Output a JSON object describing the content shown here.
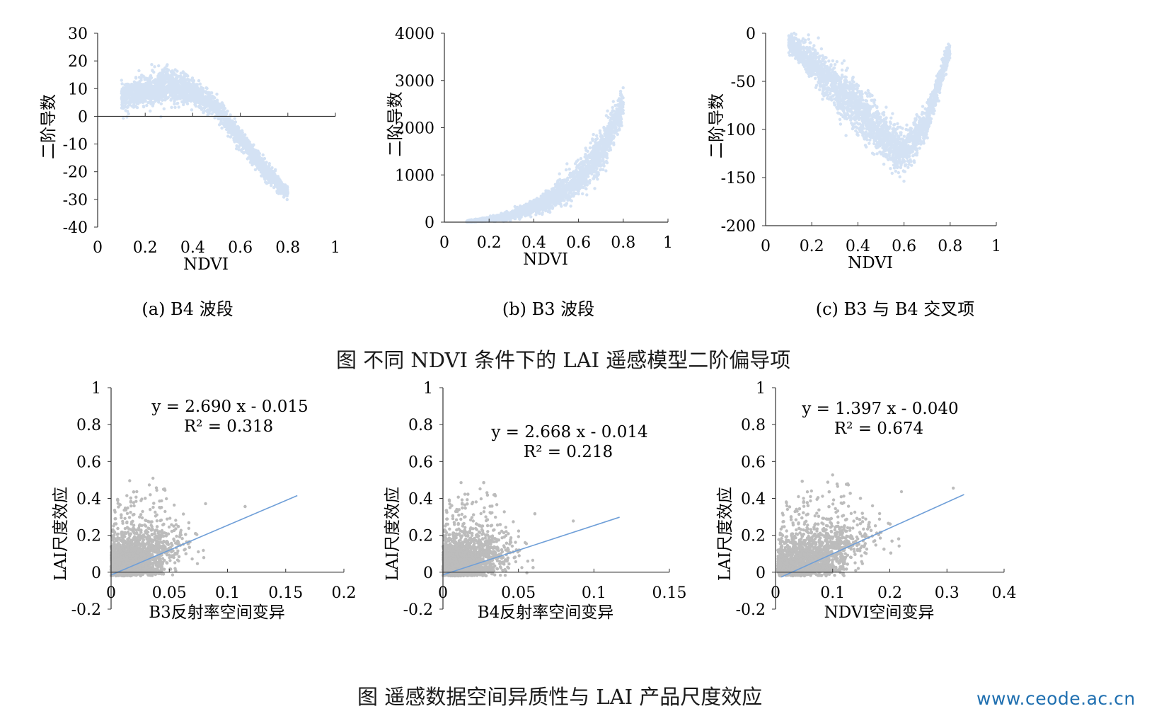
{
  "figure_top": {
    "caption": "图    不同 NDVI 条件下的 LAI 遥感模型二阶偏导项"
  },
  "figure_bottom": {
    "caption": "图    遥感数据空间异质性与 LAI 产品尺度效应"
  },
  "watermark": "www.ceode.ac.cn",
  "colors": {
    "blue_points": "#7fa9de",
    "black_points": "#111111",
    "fit_line": "#6f9fd8",
    "axis": "#333333"
  },
  "chart_data": [
    {
      "id": "a",
      "type": "scatter",
      "panel_label": "(a) B4 波段",
      "xlabel": "NDVI",
      "ylabel": "二阶导数",
      "xlim": [
        0,
        1
      ],
      "ylim": [
        -40,
        30
      ],
      "xticks": [
        0,
        0.2,
        0.4,
        0.6,
        0.8,
        1
      ],
      "xtick_labels": [
        "0",
        "0.2",
        "0.4",
        "0.6",
        "0.8",
        "1"
      ],
      "yticks": [
        30,
        20,
        10,
        0,
        -10,
        -20,
        -30,
        -40
      ],
      "ytick_labels": [
        "30",
        "20",
        "10",
        "0",
        "-10",
        "-20",
        "-30",
        "-40"
      ],
      "point_color": "#7fa9de",
      "trend": {
        "x": [
          0.1,
          0.2,
          0.3,
          0.4,
          0.5,
          0.6,
          0.7,
          0.8
        ],
        "y_center": [
          7,
          9,
          11,
          9,
          3,
          -8,
          -19,
          -28
        ],
        "y_spread": [
          4,
          5,
          6,
          4,
          3,
          3,
          3,
          2
        ]
      }
    },
    {
      "id": "b",
      "type": "scatter",
      "panel_label": "(b) B3 波段",
      "xlabel": "NDVI",
      "ylabel": "二阶导数",
      "xlim": [
        0,
        1
      ],
      "ylim": [
        0,
        4000
      ],
      "xticks": [
        0,
        0.2,
        0.4,
        0.6,
        0.8,
        1
      ],
      "xtick_labels": [
        "0",
        "0.2",
        "0.4",
        "0.6",
        "0.8",
        "1"
      ],
      "yticks": [
        4000,
        3000,
        2000,
        1000,
        0
      ],
      "ytick_labels": [
        "4000",
        "3000",
        "2000",
        "1000",
        "0"
      ],
      "point_color": "#7fa9de",
      "trend": {
        "x": [
          0.1,
          0.2,
          0.3,
          0.4,
          0.5,
          0.6,
          0.7,
          0.8
        ],
        "y_center": [
          10,
          60,
          150,
          300,
          550,
          900,
          1500,
          2500
        ],
        "y_spread": [
          20,
          40,
          80,
          120,
          200,
          300,
          400,
          300
        ]
      }
    },
    {
      "id": "c",
      "type": "scatter",
      "panel_label": "(c) B3 与 B4 交叉项",
      "xlabel": "NDVI",
      "ylabel": "二阶导数",
      "xlim": [
        0,
        1
      ],
      "ylim": [
        -200,
        0
      ],
      "xticks": [
        0,
        0.2,
        0.4,
        0.6,
        0.8,
        1
      ],
      "xtick_labels": [
        "0",
        "0.2",
        "0.4",
        "0.6",
        "0.8",
        "1"
      ],
      "yticks": [
        0,
        -50,
        -100,
        -150,
        -200
      ],
      "ytick_labels": [
        "0",
        "-50",
        "-100",
        "-150",
        "-200"
      ],
      "point_color": "#7fa9de",
      "trend": {
        "x": [
          0.1,
          0.2,
          0.3,
          0.4,
          0.5,
          0.6,
          0.7,
          0.8
        ],
        "y_center": [
          -10,
          -30,
          -55,
          -80,
          -105,
          -125,
          -90,
          -15
        ],
        "y_spread": [
          8,
          15,
          20,
          22,
          22,
          18,
          15,
          8
        ]
      }
    },
    {
      "id": "d",
      "type": "scatter",
      "xlabel": "B3反射率空间变异",
      "ylabel": "LAI尺度效应",
      "xlim": [
        0,
        0.2
      ],
      "ylim": [
        -0.2,
        1
      ],
      "xticks": [
        0,
        0.05,
        0.1,
        0.15,
        0.2
      ],
      "xtick_labels": [
        "0",
        "0.05",
        "0.1",
        "0.15",
        "0.2"
      ],
      "yticks": [
        1,
        0.8,
        0.6,
        0.4,
        0.2,
        0,
        -0.2
      ],
      "ytick_labels": [
        "1",
        "0.8",
        "0.6",
        "0.4",
        "0.2",
        "0",
        "-0.2"
      ],
      "point_color": "#111111",
      "equation": "y = 2.690 x - 0.015",
      "r2": "R² = 0.318",
      "fit": {
        "slope": 2.69,
        "intercept": -0.015,
        "x_range": [
          0,
          0.16
        ]
      }
    },
    {
      "id": "e",
      "type": "scatter",
      "xlabel": "B4反射率空间变异",
      "ylabel": "LAI尺度效应",
      "xlim": [
        0,
        0.15
      ],
      "ylim": [
        -0.2,
        1
      ],
      "xticks": [
        0,
        0.05,
        0.1,
        0.15
      ],
      "xtick_labels": [
        "0",
        "0.05",
        "0.1",
        "0.15"
      ],
      "yticks": [
        1,
        0.8,
        0.6,
        0.4,
        0.2,
        0,
        -0.2
      ],
      "ytick_labels": [
        "1",
        "0.8",
        "0.6",
        "0.4",
        "0.2",
        "0",
        "-0.2"
      ],
      "point_color": "#111111",
      "equation": "y = 2.668 x - 0.014",
      "r2": "R² = 0.218",
      "fit": {
        "slope": 2.668,
        "intercept": -0.014,
        "x_range": [
          0,
          0.117
        ]
      }
    },
    {
      "id": "f",
      "type": "scatter",
      "xlabel": "NDVI空间变异",
      "ylabel": "LAI尺度效应",
      "xlim": [
        0,
        0.4
      ],
      "ylim": [
        -0.2,
        1
      ],
      "xticks": [
        0,
        0.1,
        0.2,
        0.3,
        0.4
      ],
      "xtick_labels": [
        "0",
        "0.1",
        "0.2",
        "0.3",
        "0.4"
      ],
      "yticks": [
        1,
        0.8,
        0.6,
        0.4,
        0.2,
        0,
        -0.2
      ],
      "ytick_labels": [
        "1",
        "0.8",
        "0.6",
        "0.4",
        "0.2",
        "0",
        "-0.2"
      ],
      "point_color": "#111111",
      "equation": "y = 1.397 x - 0.040",
      "r2": "R² = 0.674",
      "fit": {
        "slope": 1.397,
        "intercept": -0.04,
        "x_range": [
          0.01,
          0.33
        ]
      }
    }
  ]
}
